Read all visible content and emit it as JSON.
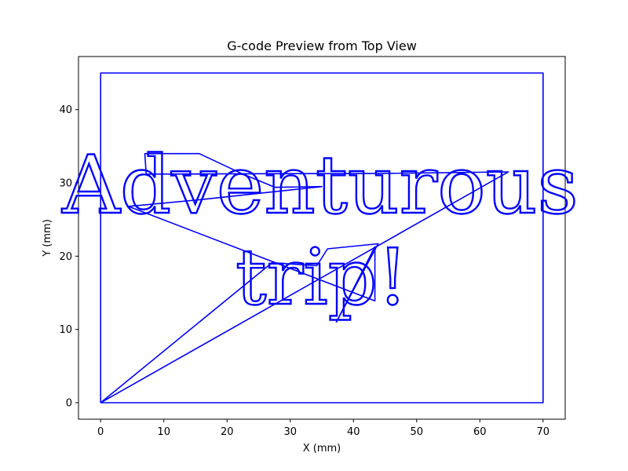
{
  "chart_data": {
    "type": "line",
    "title": "G-code Preview from Top View",
    "xlabel": "X (mm)",
    "ylabel": "Y (mm)",
    "xlim": [
      -3.5,
      73.5
    ],
    "ylim": [
      -2.25,
      47.25
    ],
    "xticks": [
      0,
      10,
      20,
      30,
      40,
      50,
      60,
      70
    ],
    "yticks": [
      0,
      10,
      20,
      30,
      40
    ],
    "grid": false,
    "legend": "none",
    "text_lines": [
      "Adventurous",
      "trip!"
    ],
    "series": [
      {
        "color": "#0000ff",
        "x": [
          0,
          70,
          70,
          0,
          0
        ],
        "y": [
          0,
          0,
          45,
          45,
          0
        ]
      },
      {
        "color": "#0000ff",
        "x": [
          0,
          64.5,
          44.5,
          7.2,
          7,
          15.6,
          22.5,
          27.6,
          35.0,
          15.6,
          4.4,
          43.4,
          43.4,
          37.3,
          43.9,
          35.9,
          34.2,
          27.1,
          0
        ],
        "y": [
          0,
          31.5,
          31.3,
          31.2,
          34,
          34,
          31.2,
          29.4,
          29.5,
          27.7,
          26.8,
          13.9,
          21.3,
          11.0,
          21.7,
          21.0,
          18.7,
          19.1,
          0
        ]
      }
    ]
  }
}
